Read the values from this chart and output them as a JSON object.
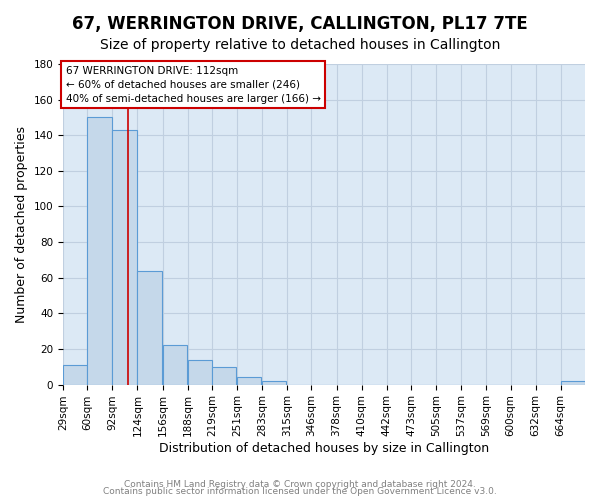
{
  "title": "67, WERRINGTON DRIVE, CALLINGTON, PL17 7TE",
  "subtitle": "Size of property relative to detached houses in Callington",
  "xlabel": "Distribution of detached houses by size in Callington",
  "ylabel": "Number of detached properties",
  "bin_labels": [
    "29sqm",
    "60sqm",
    "92sqm",
    "124sqm",
    "156sqm",
    "188sqm",
    "219sqm",
    "251sqm",
    "283sqm",
    "315sqm",
    "346sqm",
    "378sqm",
    "410sqm",
    "442sqm",
    "473sqm",
    "505sqm",
    "537sqm",
    "569sqm",
    "600sqm",
    "632sqm",
    "664sqm"
  ],
  "bin_left_edges": [
    29,
    60,
    92,
    124,
    156,
    188,
    219,
    251,
    283,
    315,
    346,
    378,
    410,
    442,
    473,
    505,
    537,
    569,
    600,
    632,
    664
  ],
  "bar_heights": [
    11,
    150,
    143,
    64,
    22,
    14,
    10,
    4,
    2,
    0,
    0,
    0,
    0,
    0,
    0,
    0,
    0,
    0,
    0,
    0,
    2
  ],
  "bin_width": 31,
  "bar_color": "#c5d8ea",
  "bar_edge_color": "#5b9bd5",
  "grid_color": "#c0cfe0",
  "background_color": "#dce9f5",
  "property_line_x": 112,
  "property_line_color": "#cc0000",
  "annotation_line1": "67 WERRINGTON DRIVE: 112sqm",
  "annotation_line2": "← 60% of detached houses are smaller (246)",
  "annotation_line3": "40% of semi-detached houses are larger (166) →",
  "annotation_box_edge_color": "#cc0000",
  "ylim": [
    0,
    180
  ],
  "yticks": [
    0,
    20,
    40,
    60,
    80,
    100,
    120,
    140,
    160,
    180
  ],
  "footer1": "Contains HM Land Registry data © Crown copyright and database right 2024.",
  "footer2": "Contains public sector information licensed under the Open Government Licence v3.0.",
  "title_fontsize": 12,
  "subtitle_fontsize": 10,
  "xlabel_fontsize": 9,
  "ylabel_fontsize": 9,
  "tick_fontsize": 7.5,
  "footer_fontsize": 6.5
}
